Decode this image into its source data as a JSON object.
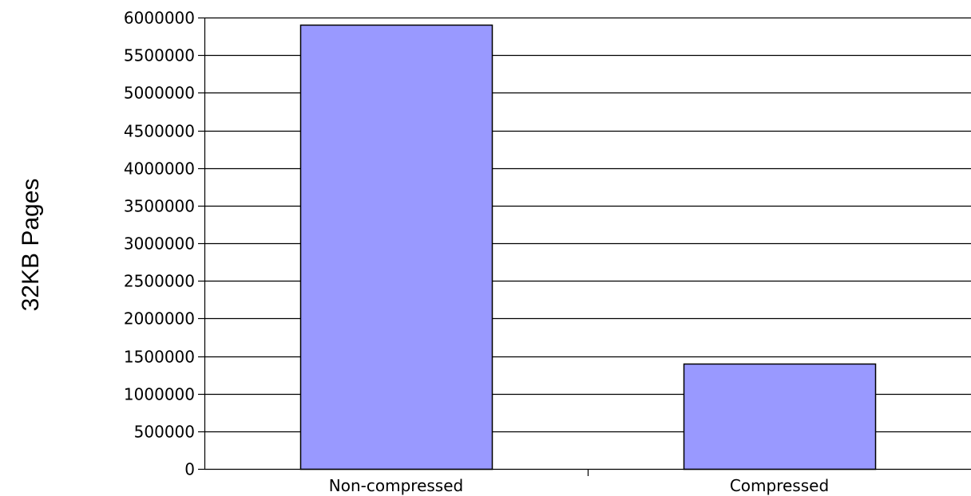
{
  "chart_data": {
    "type": "bar",
    "title": "",
    "xlabel": "",
    "ylabel": "32KB Pages",
    "categories": [
      "Non-compressed",
      "Compressed"
    ],
    "values": [
      5900000,
      1400000
    ],
    "ylim": [
      0,
      6000000
    ],
    "yticks": [
      "0",
      "500000",
      "1000000",
      "1500000",
      "2000000",
      "2500000",
      "3000000",
      "3500000",
      "4000000",
      "4500000",
      "5000000",
      "5500000",
      "6000000"
    ],
    "grid": true,
    "legend": "none",
    "colors": {
      "bar": "#9999ff",
      "bar_border": "#000000",
      "grid": "#000000",
      "background": "#ffffff"
    }
  }
}
